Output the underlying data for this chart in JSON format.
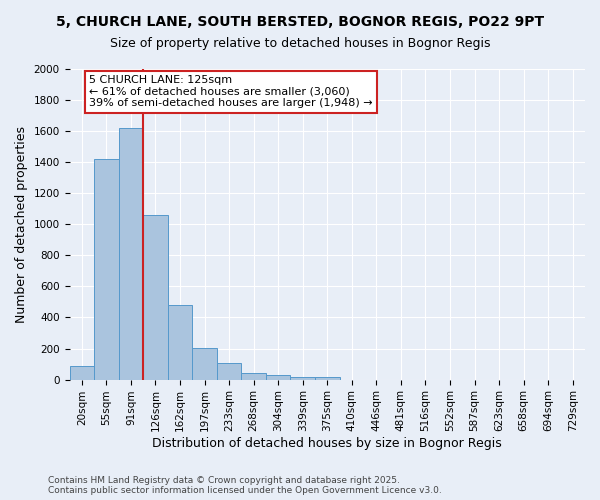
{
  "title1": "5, CHURCH LANE, SOUTH BERSTED, BOGNOR REGIS, PO22 9PT",
  "title2": "Size of property relative to detached houses in Bognor Regis",
  "xlabel": "Distribution of detached houses by size in Bognor Regis",
  "ylabel": "Number of detached properties",
  "categories": [
    "20sqm",
    "55sqm",
    "91sqm",
    "126sqm",
    "162sqm",
    "197sqm",
    "233sqm",
    "268sqm",
    "304sqm",
    "339sqm",
    "375sqm",
    "410sqm",
    "446sqm",
    "481sqm",
    "516sqm",
    "552sqm",
    "587sqm",
    "623sqm",
    "658sqm",
    "694sqm",
    "729sqm"
  ],
  "values": [
    85,
    1420,
    1620,
    1060,
    480,
    205,
    110,
    40,
    30,
    15,
    15,
    0,
    0,
    0,
    0,
    0,
    0,
    0,
    0,
    0,
    0
  ],
  "bar_color": "#aac4de",
  "bar_edge_color": "#5599cc",
  "background_color": "#e8eef7",
  "grid_color": "#ffffff",
  "vline_x_index": 3,
  "vline_color": "#cc2222",
  "annotation_line1": "5 CHURCH LANE: 125sqm",
  "annotation_line2": "← 61% of detached houses are smaller (3,060)",
  "annotation_line3": "39% of semi-detached houses are larger (1,948) →",
  "annotation_box_color": "#ffffff",
  "annotation_box_edge": "#cc2222",
  "ylim": [
    0,
    2000
  ],
  "yticks": [
    0,
    200,
    400,
    600,
    800,
    1000,
    1200,
    1400,
    1600,
    1800,
    2000
  ],
  "footer": "Contains HM Land Registry data © Crown copyright and database right 2025.\nContains public sector information licensed under the Open Government Licence v3.0.",
  "title_fontsize": 10,
  "subtitle_fontsize": 9,
  "axis_label_fontsize": 9,
  "tick_fontsize": 7.5,
  "annotation_fontsize": 8,
  "footer_fontsize": 6.5
}
